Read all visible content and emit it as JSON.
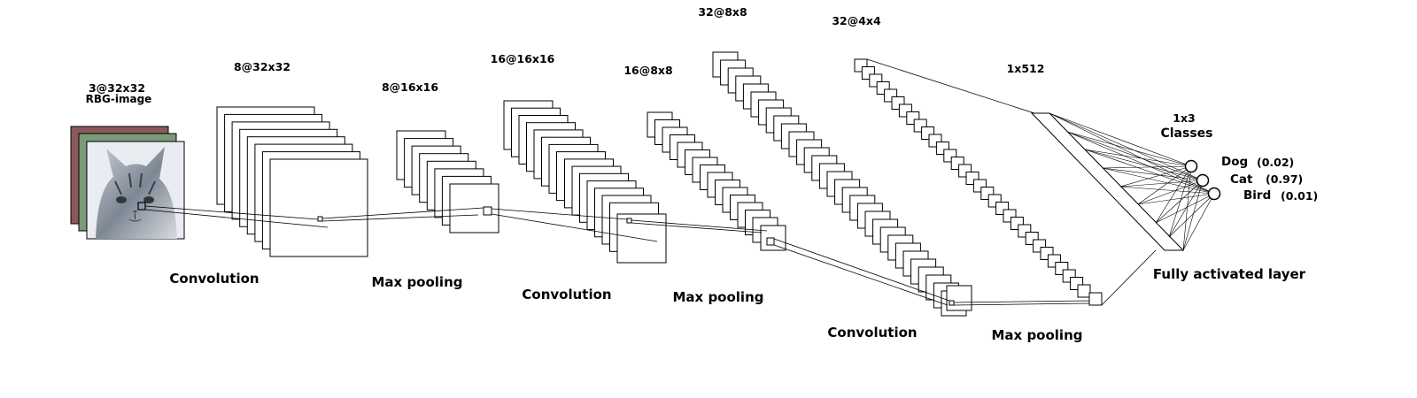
{
  "diagram": {
    "input": {
      "dims": "3@32x32",
      "caption": "RBG-image"
    },
    "layers": [
      {
        "id": "conv1-out",
        "dims": "8@32x32"
      },
      {
        "id": "pool1-out",
        "dims": "8@16x16"
      },
      {
        "id": "conv2-out",
        "dims": "16@16x16"
      },
      {
        "id": "pool2-out",
        "dims": "16@8x8"
      },
      {
        "id": "conv3-out",
        "dims": "32@8x8"
      },
      {
        "id": "pool3-out",
        "dims": "32@4x4"
      },
      {
        "id": "dense",
        "dims": "1x512"
      }
    ],
    "operations": [
      "Convolution",
      "Max pooling",
      "Convolution",
      "Max pooling",
      "Convolution",
      "Max pooling",
      "Fully activated layer"
    ],
    "output": {
      "dims": "1x3",
      "caption": "Classes",
      "classes": [
        {
          "name": "Dog",
          "score": "(0.02)"
        },
        {
          "name": "Cat",
          "score": "(0.97)"
        },
        {
          "name": "Bird",
          "score": "(0.01)"
        }
      ]
    }
  }
}
